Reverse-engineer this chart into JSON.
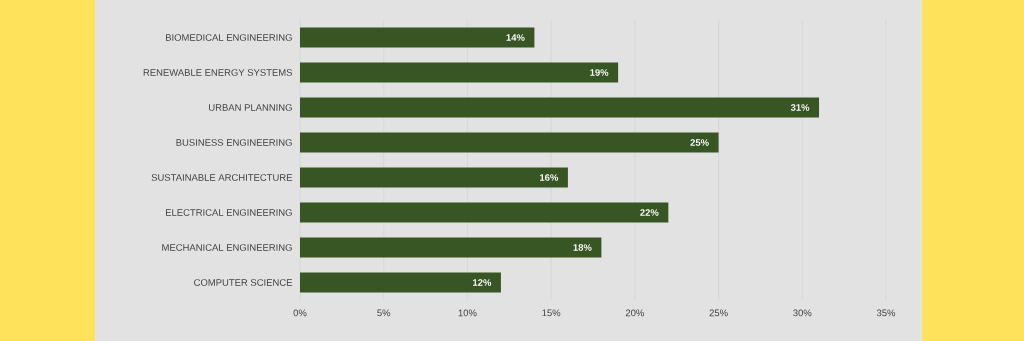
{
  "chart_data": {
    "type": "bar",
    "orientation": "horizontal",
    "categories": [
      "BIOMEDICAL ENGINEERING",
      "RENEWABLE ENERGY SYSTEMS",
      "URBAN PLANNING",
      "BUSINESS ENGINEERING",
      "SUSTAINABLE ARCHITECTURE",
      "ELECTRICAL ENGINEERING",
      "MECHANICAL ENGINEERING",
      "COMPUTER SCIENCE"
    ],
    "values": [
      14,
      19,
      31,
      25,
      16,
      22,
      18,
      12
    ],
    "value_labels": [
      "14%",
      "19%",
      "31%",
      "25%",
      "16%",
      "22%",
      "18%",
      "12%"
    ],
    "color": "#375623",
    "xlim": [
      0,
      35
    ],
    "xticks": [
      {
        "value": 0,
        "label": "0%"
      },
      {
        "value": 5,
        "label": "5%"
      },
      {
        "value": 10,
        "label": "10%"
      },
      {
        "value": 15,
        "label": "15%"
      },
      {
        "value": 20,
        "label": "20%"
      },
      {
        "value": 25,
        "label": "25%"
      },
      {
        "value": 30,
        "label": "30%"
      },
      {
        "value": 35,
        "label": "35%"
      }
    ],
    "grid": "x"
  }
}
